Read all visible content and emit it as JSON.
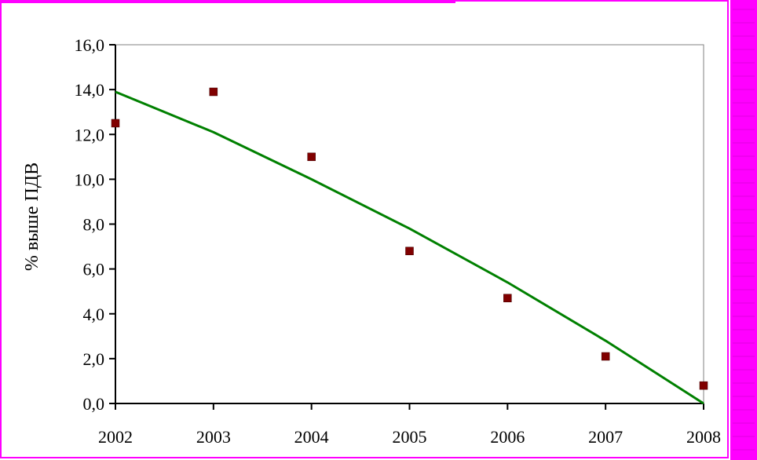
{
  "colors": {
    "frame": "#ff00ff",
    "background": "#ffffff",
    "points": "#800000",
    "trend": "#008000",
    "axis": "#000000"
  },
  "chart_data": {
    "type": "scatter",
    "title": "",
    "xlabel": "",
    "ylabel": "% выше ПДВ",
    "xlim": [
      2002,
      2008
    ],
    "ylim": [
      0,
      16
    ],
    "x_ticks": [
      "2002",
      "2003",
      "2004",
      "2005",
      "2006",
      "2007",
      "2008"
    ],
    "y_ticks": [
      "0,0",
      "2,0",
      "4,0",
      "6,0",
      "8,0",
      "10,0",
      "12,0",
      "14,0",
      "16,0"
    ],
    "grid": false,
    "legend": "none",
    "series": [
      {
        "type": "scatter",
        "x": [
          2002,
          2003,
          2004,
          2005,
          2006,
          2007,
          2008
        ],
        "y": [
          12.5,
          13.9,
          11.0,
          6.8,
          4.7,
          2.1,
          0.8
        ]
      },
      {
        "type": "line",
        "x": [
          2002,
          2003,
          2004,
          2005,
          2006,
          2007,
          2008
        ],
        "y": [
          13.9,
          12.1,
          10.0,
          7.8,
          5.4,
          2.8,
          0.0
        ]
      }
    ]
  }
}
